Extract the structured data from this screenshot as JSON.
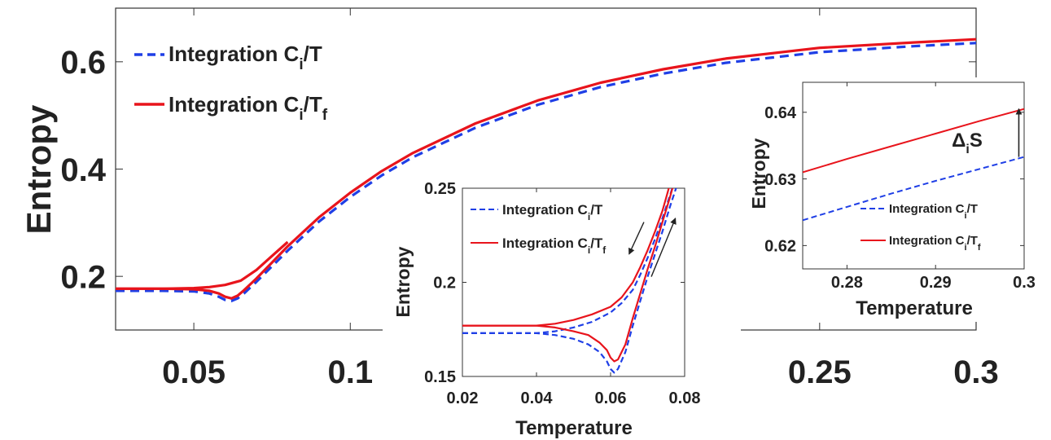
{
  "chart_data": [
    {
      "id": "main",
      "type": "line",
      "title": "",
      "xlabel": "",
      "ylabel": "Entropy",
      "xlim": [
        0.025,
        0.3
      ],
      "ylim": [
        0.1,
        0.7
      ],
      "xticks": [
        0.05,
        0.1,
        0.25,
        0.3
      ],
      "xtick_labels": [
        "0.05",
        "0.1",
        "0.25",
        "0.3"
      ],
      "yticks": [
        0.2,
        0.4,
        0.6
      ],
      "ytick_labels": [
        "0.2",
        "0.4",
        "0.6"
      ],
      "legend": {
        "position": "top-left",
        "entries": [
          {
            "label": "Integration C",
            "sub": "i",
            "tail": "/T",
            "tail_sub": ""
          },
          {
            "label": "Integration C",
            "sub": "i",
            "tail": "/T",
            "tail_sub": "f"
          }
        ]
      },
      "series": [
        {
          "name": "Integration Ci/T",
          "color": "#1f3fe6",
          "dash": true,
          "x": [
            0.025,
            0.04,
            0.05,
            0.055,
            0.058,
            0.06,
            0.062,
            0.064,
            0.066,
            0.068,
            0.07,
            0.075,
            0.08,
            0.09,
            0.1,
            0.11,
            0.12,
            0.14,
            0.16,
            0.18,
            0.2,
            0.22,
            0.25,
            0.28,
            0.3
          ],
          "y": [
            0.173,
            0.173,
            0.172,
            0.168,
            0.162,
            0.156,
            0.154,
            0.159,
            0.168,
            0.179,
            0.19,
            0.219,
            0.248,
            0.302,
            0.348,
            0.388,
            0.422,
            0.477,
            0.52,
            0.553,
            0.578,
            0.598,
            0.618,
            0.629,
            0.635
          ]
        },
        {
          "name": "Integration Ci/Tf (heating)",
          "color": "#e8141c",
          "dash": false,
          "x": [
            0.025,
            0.04,
            0.05,
            0.055,
            0.058,
            0.06,
            0.062,
            0.064,
            0.066,
            0.068,
            0.07,
            0.075,
            0.08,
            0.09,
            0.1,
            0.11,
            0.12,
            0.14,
            0.16,
            0.18,
            0.2,
            0.22,
            0.25,
            0.28,
            0.3
          ],
          "y": [
            0.177,
            0.177,
            0.176,
            0.173,
            0.168,
            0.162,
            0.159,
            0.164,
            0.174,
            0.185,
            0.196,
            0.226,
            0.256,
            0.31,
            0.356,
            0.396,
            0.43,
            0.485,
            0.528,
            0.561,
            0.586,
            0.606,
            0.626,
            0.636,
            0.642
          ]
        },
        {
          "name": "Integration Ci/Tf (cooling)",
          "color": "#e8141c",
          "dash": false,
          "x": [
            0.025,
            0.04,
            0.05,
            0.055,
            0.06,
            0.065,
            0.07,
            0.075,
            0.08
          ],
          "y": [
            0.177,
            0.177,
            0.178,
            0.18,
            0.184,
            0.192,
            0.212,
            0.238,
            0.264
          ]
        }
      ]
    },
    {
      "id": "inset_left",
      "type": "line",
      "title": "",
      "xlabel": "Temperature",
      "ylabel": "Entropy",
      "xlim": [
        0.02,
        0.08
      ],
      "ylim": [
        0.15,
        0.25
      ],
      "xticks": [
        0.02,
        0.04,
        0.06,
        0.08
      ],
      "xtick_labels": [
        "0.02",
        "0.04",
        "0.06",
        "0.08"
      ],
      "yticks": [
        0.15,
        0.2,
        0.25
      ],
      "ytick_labels": [
        "0.15",
        "0.2",
        "0.25"
      ],
      "legend": {
        "position": "top-left",
        "entries": [
          {
            "label": "Integration C",
            "sub": "i",
            "tail": "/T",
            "tail_sub": ""
          },
          {
            "label": "Integration C",
            "sub": "i",
            "tail": "/T",
            "tail_sub": "f"
          }
        ]
      },
      "series": [
        {
          "name": "Integration Ci/T (heating)",
          "color": "#1f3fe6",
          "dash": true,
          "x": [
            0.02,
            0.04,
            0.045,
            0.05,
            0.054,
            0.057,
            0.059,
            0.06,
            0.061,
            0.062,
            0.064,
            0.066,
            0.068,
            0.07,
            0.072,
            0.074,
            0.076,
            0.078
          ],
          "y": [
            0.173,
            0.173,
            0.172,
            0.17,
            0.167,
            0.163,
            0.158,
            0.154,
            0.152,
            0.154,
            0.163,
            0.177,
            0.19,
            0.203,
            0.215,
            0.227,
            0.24,
            0.252
          ]
        },
        {
          "name": "Integration Ci/T (cooling)",
          "color": "#1f3fe6",
          "dash": true,
          "x": [
            0.02,
            0.04,
            0.045,
            0.05,
            0.055,
            0.06,
            0.063,
            0.066,
            0.068,
            0.07,
            0.072,
            0.074,
            0.076,
            0.077
          ],
          "y": [
            0.173,
            0.173,
            0.174,
            0.176,
            0.179,
            0.184,
            0.189,
            0.196,
            0.204,
            0.213,
            0.223,
            0.234,
            0.246,
            0.252
          ]
        },
        {
          "name": "Integration Ci/Tf (heating)",
          "color": "#e8141c",
          "dash": false,
          "x": [
            0.02,
            0.04,
            0.045,
            0.05,
            0.054,
            0.057,
            0.059,
            0.06,
            0.061,
            0.062,
            0.064,
            0.066,
            0.068,
            0.07,
            0.072,
            0.074,
            0.076,
            0.077
          ],
          "y": [
            0.177,
            0.177,
            0.176,
            0.174,
            0.172,
            0.168,
            0.164,
            0.16,
            0.158,
            0.159,
            0.167,
            0.181,
            0.194,
            0.207,
            0.219,
            0.232,
            0.245,
            0.252
          ]
        },
        {
          "name": "Integration Ci/Tf (cooling)",
          "color": "#e8141c",
          "dash": false,
          "x": [
            0.02,
            0.04,
            0.045,
            0.05,
            0.055,
            0.06,
            0.063,
            0.066,
            0.068,
            0.07,
            0.072,
            0.074,
            0.075,
            0.076
          ],
          "y": [
            0.177,
            0.177,
            0.178,
            0.18,
            0.183,
            0.187,
            0.192,
            0.2,
            0.208,
            0.217,
            0.227,
            0.238,
            0.245,
            0.252
          ]
        }
      ],
      "annotations": [
        {
          "type": "arrow",
          "x1": 0.069,
          "y1": 0.232,
          "x2": 0.065,
          "y2": 0.215
        },
        {
          "type": "arrow",
          "x1": 0.071,
          "y1": 0.203,
          "x2": 0.0775,
          "y2": 0.234
        }
      ]
    },
    {
      "id": "inset_right",
      "type": "line",
      "title": "",
      "xlabel": "Temperature",
      "ylabel": "Entropy",
      "xlim": [
        0.275,
        0.3
      ],
      "ylim": [
        0.6165,
        0.6445
      ],
      "xticks": [
        0.28,
        0.29,
        0.3
      ],
      "xtick_labels": [
        "0.28",
        "0.29",
        "0.3"
      ],
      "yticks": [
        0.62,
        0.63,
        0.64
      ],
      "ytick_labels": [
        "0.62",
        "0.63",
        "0.64"
      ],
      "legend": {
        "position": "bottom-right",
        "entries": [
          {
            "label": "Integration C",
            "sub": "i",
            "tail": "/T",
            "tail_sub": ""
          },
          {
            "label": "Integration C",
            "sub": "i",
            "tail": "/T",
            "tail_sub": "f"
          }
        ]
      },
      "series": [
        {
          "name": "Integration Ci/T",
          "color": "#1f3fe6",
          "dash": true,
          "x": [
            0.275,
            0.28,
            0.285,
            0.29,
            0.295,
            0.3
          ],
          "y": [
            0.6238,
            0.6258,
            0.6278,
            0.6297,
            0.6315,
            0.6333
          ]
        },
        {
          "name": "Integration Ci/Tf",
          "color": "#e8141c",
          "dash": false,
          "x": [
            0.275,
            0.28,
            0.285,
            0.29,
            0.295,
            0.3
          ],
          "y": [
            0.631,
            0.633,
            0.6349,
            0.6368,
            0.6387,
            0.6405
          ]
        }
      ],
      "annotations": [
        {
          "type": "double-arrow",
          "x": 0.2994,
          "y1": 0.6333,
          "y2": 0.6405,
          "label": "Δ",
          "sub": "i",
          "tail": "S"
        }
      ]
    }
  ]
}
